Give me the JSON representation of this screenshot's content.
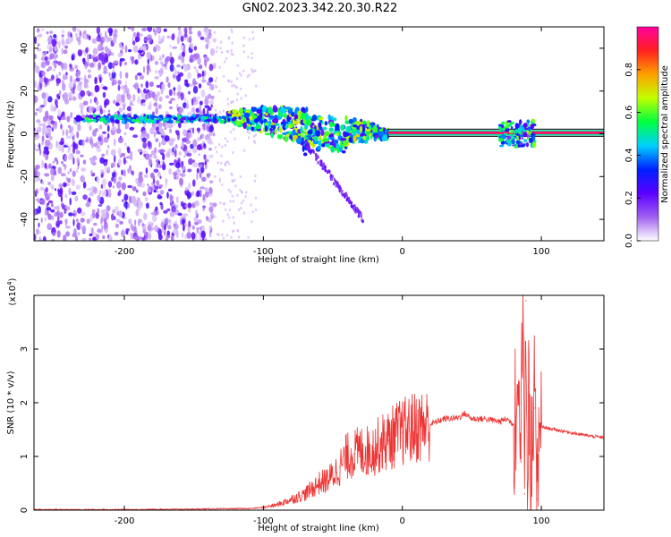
{
  "title": "GN02.2023.342.20.30.R22",
  "chart_data": [
    {
      "type": "heatmap",
      "xlabel": "Height of straight line (km)",
      "ylabel": "Frequency (Hz)",
      "xlim": [
        -265,
        145
      ],
      "ylim": [
        -50,
        50
      ],
      "x_ticks": [
        -200,
        -100,
        0,
        100
      ],
      "x_tick_labels": [
        "-200",
        "-100",
        "0",
        "100"
      ],
      "y_ticks": [
        -40,
        -20,
        0,
        20,
        40
      ],
      "y_tick_labels": [
        "-40",
        "-20",
        "0",
        "20",
        "40"
      ],
      "colorbar": {
        "label": "Normalized spectral amplitude",
        "range": [
          0,
          1
        ],
        "ticks": [
          0.0,
          0.2,
          0.4,
          0.6,
          0.8
        ],
        "tick_labels": [
          "0.0",
          "0.2",
          "0.4",
          "0.6",
          "0.8"
        ],
        "colors": [
          "#ffffff",
          "#a060f0",
          "#5a00ff",
          "#0020ff",
          "#00d0ff",
          "#00ff40",
          "#c0ff00",
          "#ffa000",
          "#ff2020",
          "#ff00a0"
        ]
      },
      "features": [
        {
          "x_range": [
            -265,
            -135
          ],
          "freq_range": [
            -50,
            50
          ],
          "amplitude": 0.1
        },
        {
          "x_range": [
            -235,
            -125
          ],
          "freq": 7,
          "amplitude": 0.45
        },
        {
          "x_range": [
            -125,
            -10
          ],
          "freq_start": 8,
          "freq_end": 0,
          "amplitude": 0.6
        },
        {
          "x_range": [
            -10,
            145
          ],
          "freq": 0.5,
          "amplitude": 0.95
        },
        {
          "x_range": [
            70,
            95
          ],
          "freq": 0,
          "amplitude": 0.5
        }
      ]
    },
    {
      "type": "line",
      "xlabel": "Height of straight line (km)",
      "ylabel": "SNR (10 * v/v)",
      "multiplier": "(x10",
      "multiplier_exp": "4",
      "multiplier_close": ")",
      "xlim": [
        -265,
        145
      ],
      "ylim": [
        0,
        4
      ],
      "x_ticks": [
        -200,
        -100,
        0,
        100
      ],
      "x_tick_labels": [
        "-200",
        "-100",
        "0",
        "100"
      ],
      "y_ticks": [
        0,
        1,
        2,
        3
      ],
      "y_tick_labels": [
        "0",
        "1",
        "2",
        "3"
      ],
      "color": "#ee3333",
      "series": [
        {
          "x": [
            -265,
            -200,
            -150,
            -110,
            -100,
            -90,
            -80,
            -70,
            -60,
            -55,
            -50,
            -45,
            -40,
            -35,
            -30,
            -25,
            -20,
            -15,
            -10,
            -5,
            0,
            10,
            20,
            30,
            40,
            45,
            50,
            60,
            70,
            75,
            80,
            83,
            85,
            87,
            88,
            89,
            90,
            91,
            92,
            93,
            95,
            97,
            100,
            110,
            120,
            130,
            145
          ],
          "y": [
            0.01,
            0.01,
            0.02,
            0.03,
            0.05,
            0.1,
            0.2,
            0.3,
            0.5,
            0.55,
            0.65,
            0.8,
            1.0,
            1.05,
            1.1,
            1.1,
            1.15,
            1.25,
            1.3,
            1.4,
            1.45,
            1.55,
            1.6,
            1.7,
            1.72,
            1.8,
            1.7,
            1.7,
            1.65,
            1.7,
            1.6,
            2.2,
            1.4,
            3.2,
            0.3,
            3.9,
            0.5,
            3.0,
            0.8,
            1.0,
            1.9,
            0.2,
            1.55,
            1.5,
            1.45,
            1.4,
            1.35
          ]
        }
      ]
    }
  ]
}
